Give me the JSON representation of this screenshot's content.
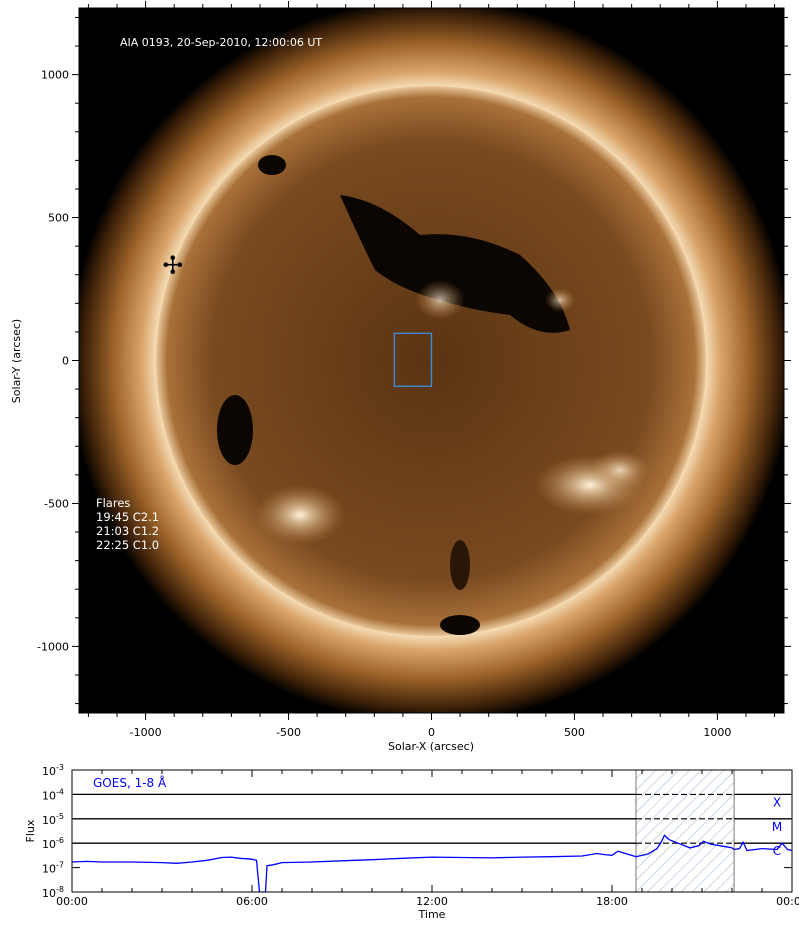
{
  "chart_data": [
    {
      "type": "image",
      "title": "AIA 0193, 20-Sep-2010, 12:00:06 UT",
      "xlabel": "Solar-X (arcsec)",
      "ylabel": "Solar-Y (arcsec)",
      "xlim": [
        -1233,
        1233
      ],
      "ylim": [
        -1233,
        1233
      ],
      "xticks": [
        -1000,
        -500,
        0,
        500,
        1000
      ],
      "yticks": [
        -1000,
        -500,
        0,
        500,
        1000
      ],
      "solar_radius_arcsec": 960,
      "colormap": "sdoaia193",
      "annotation": {
        "header": "Flares",
        "lines": [
          "19:45 C2.1",
          "21:03 C1.2",
          "22:25 C1.0"
        ]
      },
      "region_box": {
        "x": [
          -130,
          0
        ],
        "y": [
          -90,
          95
        ],
        "color": "#3a8fe0"
      },
      "marker": {
        "x": -905,
        "y": 335,
        "symbol": "cross-arrows"
      }
    },
    {
      "type": "line",
      "label": "GOES, 1-8 Å",
      "xlabel": "Time",
      "ylabel": "Flux",
      "xlim": [
        0,
        24
      ],
      "ylog": true,
      "ylim": [
        1e-08,
        0.001
      ],
      "xtick_labels": [
        "00:00",
        "06:00",
        "12:00",
        "18:00",
        "00:00"
      ],
      "xtick_hours": [
        0,
        6,
        12,
        18,
        24
      ],
      "ytick_labels": [
        {
          "base": "10",
          "exp": "-3"
        },
        {
          "base": "10",
          "exp": "-4"
        },
        {
          "base": "10",
          "exp": "-5"
        },
        {
          "base": "10",
          "exp": "-6"
        },
        {
          "base": "10",
          "exp": "-7"
        },
        {
          "base": "10",
          "exp": "-8"
        }
      ],
      "class_levels": [
        {
          "label": "X",
          "flux": 0.0001
        },
        {
          "label": "M",
          "flux": 1e-05
        },
        {
          "label": "C",
          "flux": 1e-06
        }
      ],
      "highlight_interval_hours": [
        18.8,
        22.07
      ],
      "series_color": "#0000ff",
      "series": [
        {
          "x": [
            0,
            0.5,
            1,
            2,
            3,
            3.5,
            4,
            4.5,
            5,
            5.3,
            5.6,
            6.0,
            6.15,
            6.25,
            6.3,
            6.45,
            6.5,
            6.7,
            7,
            8,
            9,
            10,
            11,
            12,
            13,
            14,
            15,
            16,
            17,
            17.5,
            17.75,
            18,
            18.2,
            18.5,
            18.8,
            19.2,
            19.5,
            19.65,
            19.75,
            19.9,
            20.3,
            20.6,
            20.9,
            21.05,
            21.3,
            21.7,
            22.0,
            22.07,
            22.25,
            22.37,
            22.5,
            23.0,
            23.5,
            23.67,
            23.85,
            24
          ],
          "y": [
            1.7e-07,
            1.8e-07,
            1.7e-07,
            1.7e-07,
            1.6e-07,
            1.5e-07,
            1.7e-07,
            2e-07,
            2.6e-07,
            2.7e-07,
            2.4e-07,
            2.2e-07,
            2e-07,
            1e-08,
            1e-08,
            1e-08,
            1.2e-07,
            1.3e-07,
            1.6e-07,
            1.7e-07,
            1.9e-07,
            2.1e-07,
            2.4e-07,
            2.7e-07,
            2.6e-07,
            2.5e-07,
            2.7e-07,
            2.8e-07,
            3e-07,
            3.8e-07,
            3.4e-07,
            3.2e-07,
            4.7e-07,
            3.6e-07,
            2.8e-07,
            3.6e-07,
            6e-07,
            1.2e-06,
            2.1e-06,
            1.4e-06,
            9e-07,
            6.4e-07,
            8e-07,
            1.2e-06,
            9e-07,
            7.5e-07,
            6.4e-07,
            5.5e-07,
            6e-07,
            1.1e-06,
            5e-07,
            6e-07,
            5.5e-07,
            1e-06,
            5.5e-07,
            5e-07
          ]
        }
      ]
    }
  ]
}
